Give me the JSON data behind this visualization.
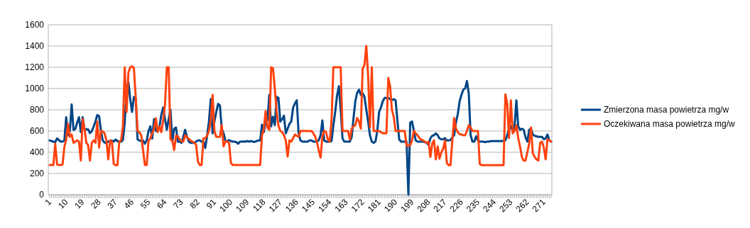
{
  "chart_data": {
    "type": "line",
    "categories": [
      "1",
      null,
      null,
      null,
      null,
      null,
      null,
      null,
      null,
      "10",
      null,
      null,
      null,
      null,
      null,
      null,
      null,
      null,
      "19",
      null,
      null,
      null,
      null,
      null,
      null,
      null,
      null,
      "28",
      null,
      null,
      null,
      null,
      null,
      null,
      null,
      null,
      "37",
      null,
      null,
      null,
      null,
      null,
      null,
      null,
      null,
      "46",
      null,
      null,
      null,
      null,
      null,
      null,
      null,
      null,
      "55",
      null,
      null,
      null,
      null,
      null,
      null,
      null,
      null,
      "64",
      null,
      null,
      null,
      null,
      null,
      null,
      null,
      null,
      "73",
      null,
      null,
      null,
      null,
      null,
      null,
      null,
      null,
      "82",
      null,
      null,
      null,
      null,
      null,
      null,
      null,
      null,
      "91",
      null,
      null,
      null,
      null,
      null,
      null,
      null,
      null,
      "100",
      null,
      null,
      null,
      null,
      null,
      null,
      null,
      null,
      "109",
      null,
      null,
      null,
      null,
      null,
      null,
      null,
      null,
      "118",
      null,
      null,
      null,
      null,
      null,
      null,
      null,
      null,
      "127",
      null,
      null,
      null,
      null,
      null,
      null,
      null,
      null,
      "136",
      null,
      null,
      null,
      null,
      null,
      null,
      null,
      null,
      "145",
      null,
      null,
      null,
      null,
      null,
      null,
      null,
      null,
      "154",
      null,
      null,
      null,
      null,
      null,
      null,
      null,
      null,
      "163",
      null,
      null,
      null,
      null,
      null,
      null,
      null,
      null,
      "172",
      null,
      null,
      null,
      null,
      null,
      null,
      null,
      null,
      "181",
      null,
      null,
      null,
      null,
      null,
      null,
      null,
      null,
      "190",
      null,
      null,
      null,
      null,
      null,
      null,
      null,
      null,
      "199",
      null,
      null,
      null,
      null,
      null,
      null,
      null,
      null,
      "208",
      null,
      null,
      null,
      null,
      null,
      null,
      null,
      null,
      "217",
      null,
      null,
      null,
      null,
      null,
      null,
      null,
      null,
      "226",
      null,
      null,
      null,
      null,
      null,
      null,
      null,
      null,
      "235",
      null,
      null,
      null,
      null,
      null,
      null,
      null,
      null,
      "244",
      null,
      null,
      null,
      null,
      null,
      null,
      null,
      null,
      "253",
      null,
      null,
      null,
      null,
      null,
      null,
      null,
      null,
      "262",
      null,
      null,
      null,
      null,
      null,
      null,
      null,
      null,
      "271",
      null,
      null,
      null,
      null
    ],
    "series": [
      {
        "name": "Zmierzona masa powietrza mg/w",
        "color": "#004586",
        "values": [
          511,
          505,
          500,
          495,
          530,
          515,
          500,
          500,
          510,
          730,
          560,
          600,
          850,
          610,
          620,
          680,
          730,
          590,
          730,
          620,
          615,
          615,
          580,
          600,
          640,
          690,
          750,
          740,
          600,
          510,
          490,
          490,
          500,
          510,
          510,
          500,
          520,
          505,
          500,
          500,
          515,
          680,
          1000,
          1060,
          900,
          780,
          920,
          910,
          520,
          511,
          505,
          511,
          480,
          511,
          600,
          644,
          530,
          711,
          600,
          600,
          644,
          755,
          822,
          711,
          611,
          711,
          800,
          500,
          622,
          633,
          500,
          500,
          489,
          545,
          611,
          545,
          500,
          489,
          489,
          489,
          500,
          511,
          511,
          500,
          500,
          440,
          555,
          689,
          900,
          578,
          689,
          778,
          855,
          840,
          620,
          580,
          510,
          500,
          515,
          505,
          500,
          500,
          495,
          480,
          500,
          500,
          502,
          500,
          505,
          500,
          505,
          500,
          497,
          505,
          510,
          511,
          660,
          590,
          689,
          700,
          940,
          644,
          733,
          655,
          922,
          911,
          689,
          711,
          744,
          578,
          622,
          667,
          690,
          820,
          860,
          889,
          580,
          511,
          500,
          500,
          500,
          500,
          511,
          511,
          500,
          500,
          500,
          511,
          560,
          700,
          511,
          500,
          500,
          500,
          505,
          650,
          780,
          930,
          1022,
          800,
          530,
          500,
          500,
          500,
          500,
          540,
          720,
          880,
          960,
          989,
          940,
          955,
          922,
          800,
          690,
          560,
          500,
          489,
          500,
          600,
          780,
          822,
          880,
          911,
          911,
          911,
          900,
          890,
          900,
          890,
          700,
          520,
          500,
          500,
          500,
          500,
          0,
          680,
          689,
          600,
          511,
          500,
          500,
          500,
          500,
          495,
          489,
          470,
          530,
          555,
          560,
          578,
          560,
          530,
          522,
          522,
          533,
          511,
          511,
          515,
          540,
          560,
          680,
          760,
          880,
          940,
          990,
          1000,
          1071,
          950,
          560,
          500,
          500,
          550,
          511,
          500,
          500,
          500,
          495,
          500,
          500,
          505,
          505,
          505,
          505,
          505,
          505,
          505,
          508,
          511,
          560,
          622,
          644,
          600,
          644,
          889,
          644,
          611,
          622,
          611,
          540,
          500,
          611,
          622,
          567,
          555,
          550,
          545,
          545,
          545,
          522,
          530,
          567,
          511,
          500
        ]
      },
      {
        "name": "Oczekiwana masa powietrza mg/w",
        "color": "#ff420e",
        "values": [
          280,
          280,
          280,
          480,
          285,
          280,
          280,
          285,
          450,
          520,
          667,
          545,
          567,
          489,
          500,
          511,
          500,
          322,
          711,
          622,
          489,
          467,
          322,
          489,
          511,
          489,
          689,
          444,
          600,
          595,
          578,
          511,
          333,
          511,
          500,
          289,
          278,
          278,
          500,
          511,
          644,
          1200,
          778,
          1150,
          1200,
          1210,
          1190,
          920,
          600,
          590,
          560,
          420,
          280,
          280,
          510,
          530,
          580,
          620,
          720,
          590,
          640,
          590,
          700,
          850,
          1200,
          1200,
          520,
          510,
          420,
          555,
          550,
          520,
          505,
          500,
          560,
          540,
          525,
          510,
          500,
          489,
          470,
          311,
          280,
          280,
          530,
          533,
          555,
          600,
          700,
          940,
          600,
          545,
          545,
          545,
          655,
          455,
          500,
          500,
          489,
          300,
          280,
          280,
          280,
          280,
          280,
          280,
          280,
          280,
          280,
          280,
          280,
          280,
          280,
          280,
          280,
          280,
          560,
          620,
          789,
          630,
          611,
          1200,
          1190,
          1000,
          780,
          650,
          600,
          590,
          560,
          511,
          360,
          511,
          500,
          533,
          567,
          555,
          545,
          600,
          600,
          600,
          600,
          600,
          600,
          600,
          580,
          550,
          500,
          420,
          350,
          550,
          600,
          590,
          520,
          500,
          700,
          1200,
          1200,
          1200,
          1200,
          1200,
          600,
          600,
          600,
          600,
          520,
          622,
          644,
          655,
          722,
          689,
          622,
          1189,
          1222,
          1400,
          1122,
          633,
          1200,
          600,
          600,
          600,
          600,
          589,
          578,
          578,
          578,
          1100,
          1022,
          800,
          733,
          600,
          600,
          600,
          600,
          600,
          600,
          460,
          460,
          467,
          511,
          600,
          578,
          560,
          533,
          520,
          511,
          500,
          489,
          500,
          356,
          480,
          511,
          333,
          455,
          340,
          400,
          433,
          511,
          300,
          278,
          278,
          511,
          722,
          622,
          589,
          570,
          567,
          560,
          560,
          600,
          655,
          633,
          600,
          600,
          600,
          600,
          290,
          278,
          278,
          278,
          278,
          278,
          278,
          278,
          278,
          278,
          278,
          278,
          278,
          278,
          944,
          860,
          533,
          889,
          578,
          600,
          655,
          533,
          455,
          356,
          322,
          322,
          400,
          480,
          633,
          389,
          356,
          333,
          322,
          489,
          500,
          444,
          333,
          522,
          511,
          500
        ]
      }
    ],
    "ylim": [
      0,
      1600
    ],
    "yticks": [
      0,
      200,
      400,
      600,
      800,
      1000,
      1200,
      1400,
      1600
    ],
    "grid": "y",
    "legend": "right",
    "marker": "none",
    "line_style": "solid"
  }
}
